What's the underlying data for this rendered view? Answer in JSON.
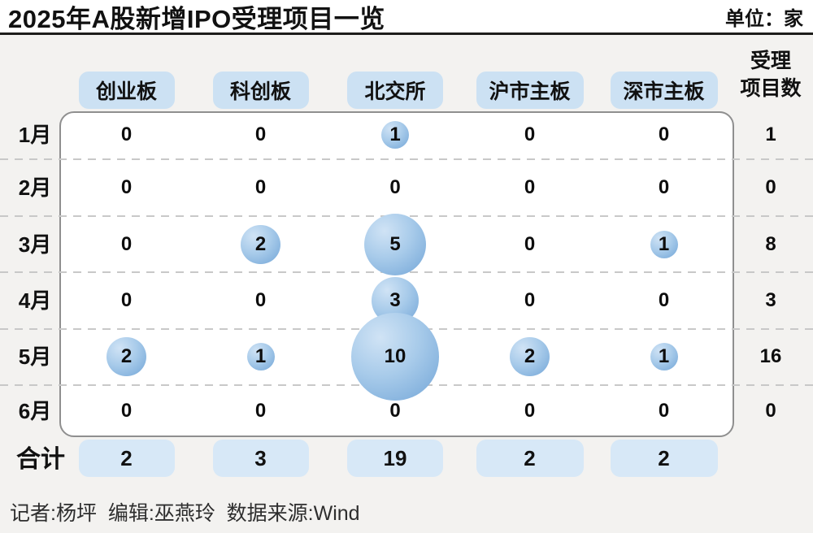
{
  "header": {
    "title": "2025年A股新增IPO受理项目一览",
    "unit_label": "单位：家"
  },
  "table": {
    "columns": [
      "创业板",
      "科创板",
      "北交所",
      "沪市主板",
      "深市主板"
    ],
    "count_header": [
      "受理",
      "项目数"
    ],
    "rows": [
      {
        "month": "1月",
        "values": [
          0,
          0,
          1,
          0,
          0
        ],
        "total": 1
      },
      {
        "month": "2月",
        "values": [
          0,
          0,
          0,
          0,
          0
        ],
        "total": 0
      },
      {
        "month": "3月",
        "values": [
          0,
          2,
          5,
          0,
          1
        ],
        "total": 8
      },
      {
        "month": "4月",
        "values": [
          0,
          0,
          3,
          0,
          0
        ],
        "total": 3
      },
      {
        "month": "5月",
        "values": [
          2,
          1,
          10,
          2,
          1
        ],
        "total": 16
      },
      {
        "month": "6月",
        "values": [
          0,
          0,
          0,
          0,
          0
        ],
        "total": 0
      }
    ],
    "total_row": {
      "label": "合计",
      "values": [
        2,
        3,
        19,
        2,
        2
      ]
    }
  },
  "footer": {
    "credits": "记者:杨坪  编辑:巫燕玲  数据来源:Wind"
  },
  "colors": {
    "page_bg": "#f3f2f0",
    "title_rule": "#1d1d1b",
    "panel_border": "#8f8f8f",
    "header_chip_bg": "#cce1f3",
    "total_chip_bg": "#d7e8f7",
    "bubble_light": "#d0e3f5",
    "bubble_dark": "#72a5d7",
    "separator": "#c8c8c8"
  },
  "chart_data": {
    "type": "table",
    "title": "2025年A股新增IPO受理项目一览",
    "unit_label": "单位：家",
    "categories": [
      "1月",
      "2月",
      "3月",
      "4月",
      "5月",
      "6月"
    ],
    "series": [
      {
        "name": "创业板",
        "values": [
          0,
          0,
          0,
          0,
          2,
          0
        ],
        "total": 2
      },
      {
        "name": "科创板",
        "values": [
          0,
          0,
          2,
          0,
          1,
          0
        ],
        "total": 3
      },
      {
        "name": "北交所",
        "values": [
          1,
          0,
          5,
          3,
          10,
          0
        ],
        "total": 19
      },
      {
        "name": "沪市主板",
        "values": [
          0,
          0,
          0,
          0,
          2,
          0
        ],
        "total": 2
      },
      {
        "name": "深市主板",
        "values": [
          0,
          0,
          1,
          0,
          1,
          0
        ],
        "total": 2
      }
    ],
    "row_totals": {
      "header_lines": [
        "受理",
        "项目数"
      ],
      "values": [
        1,
        0,
        8,
        3,
        16,
        0
      ]
    },
    "column_total_label": "合计",
    "annotations": "记者:杨坪 编辑:巫燕玲 数据来源:Wind",
    "layout_hints": {
      "encoding": "bubble area proportional to value",
      "grid": "dashed horizontal row separators",
      "legend": "none"
    }
  }
}
